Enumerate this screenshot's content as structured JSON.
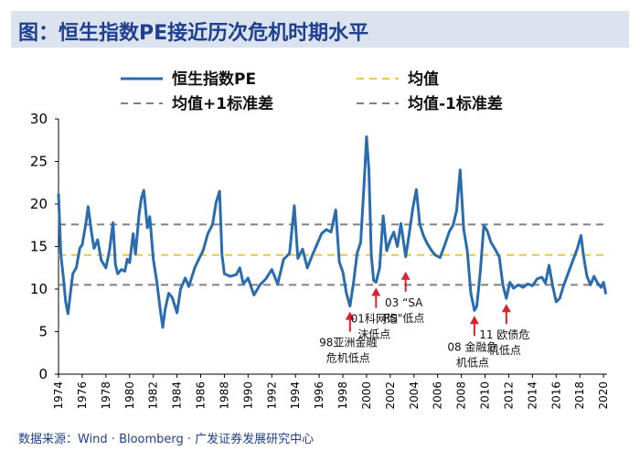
{
  "header": {
    "title": "图：恒生指数PE接近历次危机时期水平"
  },
  "footer": {
    "source": "数据来源：Wind · Bloomberg · 广发证券发展研究中心"
  },
  "colors": {
    "series": "#2a6cb0",
    "mean": "#e8c84a",
    "band": "#808080",
    "arrow": "#e0202a",
    "title": "#1f3f8f"
  },
  "chart_data": {
    "type": "line",
    "title": "恒生指数PE接近历次危机时期水平",
    "xlabel": "",
    "ylabel": "",
    "ylim": [
      0,
      30
    ],
    "xlim": [
      1974,
      2020.3
    ],
    "yticks": [
      0,
      5,
      10,
      15,
      20,
      25,
      30
    ],
    "xticks": [
      "1974",
      "1976",
      "1978",
      "1980",
      "1982",
      "1984",
      "1986",
      "1988",
      "1990",
      "1992",
      "1994",
      "1996",
      "1998",
      "2000",
      "2002",
      "2004",
      "2006",
      "2008",
      "2010",
      "2012",
      "2014",
      "2016",
      "2018",
      "2020"
    ],
    "legend": [
      "恒生指数PE",
      "均值",
      "均值+1标准差",
      "均值-1标准差"
    ],
    "reference_lines": {
      "mean": 14.0,
      "mean_plus_1sd": 17.6,
      "mean_minus_1sd": 10.5
    },
    "series": [
      {
        "name": "恒生指数PE",
        "points": [
          [
            1974.0,
            21.2
          ],
          [
            1974.2,
            14
          ],
          [
            1974.4,
            11.5
          ],
          [
            1974.6,
            8.5
          ],
          [
            1974.8,
            7.1
          ],
          [
            1975.0,
            9.5
          ],
          [
            1975.2,
            11.8
          ],
          [
            1975.5,
            12.5
          ],
          [
            1975.8,
            14.8
          ],
          [
            1976.0,
            15.2
          ],
          [
            1976.3,
            17.6
          ],
          [
            1976.5,
            19.7
          ],
          [
            1976.8,
            16.5
          ],
          [
            1977.0,
            14.8
          ],
          [
            1977.3,
            15.8
          ],
          [
            1977.6,
            13.4
          ],
          [
            1978.0,
            12.5
          ],
          [
            1978.3,
            14.5
          ],
          [
            1978.6,
            17.8
          ],
          [
            1978.8,
            12.9
          ],
          [
            1979.0,
            11.8
          ],
          [
            1979.3,
            12.3
          ],
          [
            1979.6,
            12.1
          ],
          [
            1979.8,
            13.5
          ],
          [
            1980.0,
            13.1
          ],
          [
            1980.3,
            16.5
          ],
          [
            1980.5,
            14.1
          ],
          [
            1980.8,
            18.8
          ],
          [
            1981.0,
            20.7
          ],
          [
            1981.2,
            21.6
          ],
          [
            1981.5,
            17.2
          ],
          [
            1981.7,
            18.5
          ],
          [
            1982.0,
            13.5
          ],
          [
            1982.3,
            10.8
          ],
          [
            1982.6,
            7.5
          ],
          [
            1982.8,
            5.5
          ],
          [
            1983.0,
            7.6
          ],
          [
            1983.3,
            9.5
          ],
          [
            1983.6,
            9.0
          ],
          [
            1984.0,
            7.2
          ],
          [
            1984.3,
            10.0
          ],
          [
            1984.7,
            11.3
          ],
          [
            1985.0,
            10.3
          ],
          [
            1985.5,
            12.5
          ],
          [
            1985.8,
            13.4
          ],
          [
            1986.2,
            14.5
          ],
          [
            1986.6,
            16.5
          ],
          [
            1987.0,
            17.6
          ],
          [
            1987.3,
            20.2
          ],
          [
            1987.6,
            21.5
          ],
          [
            1987.8,
            14.0
          ],
          [
            1988.0,
            11.8
          ],
          [
            1988.5,
            11.5
          ],
          [
            1989.0,
            11.7
          ],
          [
            1989.3,
            12.5
          ],
          [
            1989.6,
            10.6
          ],
          [
            1990.0,
            11.3
          ],
          [
            1990.5,
            9.3
          ],
          [
            1991.0,
            10.5
          ],
          [
            1991.5,
            11.2
          ],
          [
            1992.0,
            12.3
          ],
          [
            1992.5,
            10.6
          ],
          [
            1993.0,
            13.5
          ],
          [
            1993.5,
            14.2
          ],
          [
            1993.9,
            19.8
          ],
          [
            1994.2,
            13.6
          ],
          [
            1994.6,
            14.7
          ],
          [
            1995.0,
            12.5
          ],
          [
            1995.4,
            13.9
          ],
          [
            1995.8,
            15.2
          ],
          [
            1996.2,
            16.5
          ],
          [
            1996.6,
            17.0
          ],
          [
            1997.0,
            16.7
          ],
          [
            1997.4,
            19.3
          ],
          [
            1997.7,
            13.2
          ],
          [
            1998.0,
            12.0
          ],
          [
            1998.3,
            9.5
          ],
          [
            1998.6,
            8.0
          ],
          [
            1998.9,
            10.8
          ],
          [
            1999.2,
            14.2
          ],
          [
            1999.5,
            15.5
          ],
          [
            1999.8,
            22.5
          ],
          [
            2000.0,
            27.9
          ],
          [
            2000.2,
            24.0
          ],
          [
            2000.4,
            14.0
          ],
          [
            2000.6,
            11.0
          ],
          [
            2000.8,
            10.8
          ],
          [
            2001.1,
            12.5
          ],
          [
            2001.4,
            18.6
          ],
          [
            2001.7,
            14.5
          ],
          [
            2002.0,
            15.8
          ],
          [
            2002.3,
            16.7
          ],
          [
            2002.6,
            15.0
          ],
          [
            2002.9,
            17.7
          ],
          [
            2003.3,
            13.8
          ],
          [
            2003.6,
            16.5
          ],
          [
            2003.9,
            19.5
          ],
          [
            2004.2,
            21.7
          ],
          [
            2004.5,
            17.6
          ],
          [
            2004.8,
            16.3
          ],
          [
            2005.1,
            15.4
          ],
          [
            2005.5,
            14.5
          ],
          [
            2005.8,
            14.0
          ],
          [
            2006.2,
            13.7
          ],
          [
            2006.6,
            15.2
          ],
          [
            2007.0,
            16.8
          ],
          [
            2007.3,
            17.5
          ],
          [
            2007.6,
            19.2
          ],
          [
            2007.9,
            24.0
          ],
          [
            2008.2,
            17.0
          ],
          [
            2008.5,
            14.5
          ],
          [
            2008.8,
            9.5
          ],
          [
            2009.1,
            7.5
          ],
          [
            2009.3,
            8.0
          ],
          [
            2009.6,
            12.0
          ],
          [
            2009.9,
            17.5
          ],
          [
            2010.2,
            16.8
          ],
          [
            2010.5,
            15.5
          ],
          [
            2010.8,
            14.8
          ],
          [
            2011.2,
            13.8
          ],
          [
            2011.5,
            10.5
          ],
          [
            2011.8,
            8.9
          ],
          [
            2012.1,
            10.8
          ],
          [
            2012.4,
            10.1
          ],
          [
            2012.8,
            10.5
          ],
          [
            2013.2,
            10.2
          ],
          [
            2013.6,
            10.6
          ],
          [
            2014.0,
            10.4
          ],
          [
            2014.4,
            11.2
          ],
          [
            2014.8,
            11.4
          ],
          [
            2015.1,
            10.7
          ],
          [
            2015.4,
            12.8
          ],
          [
            2015.7,
            10.4
          ],
          [
            2016.0,
            8.5
          ],
          [
            2016.3,
            8.9
          ],
          [
            2016.6,
            10.3
          ],
          [
            2017.0,
            11.8
          ],
          [
            2017.4,
            13.3
          ],
          [
            2017.8,
            14.8
          ],
          [
            2018.1,
            16.3
          ],
          [
            2018.3,
            14.0
          ],
          [
            2018.6,
            11.5
          ],
          [
            2018.9,
            10.5
          ],
          [
            2019.2,
            11.5
          ],
          [
            2019.5,
            10.7
          ],
          [
            2019.8,
            10.2
          ],
          [
            2020.0,
            10.8
          ],
          [
            2020.2,
            9.4
          ]
        ]
      }
    ],
    "annotations": [
      {
        "x": 1998.6,
        "y": 8.0,
        "lines": [
          "98亚洲金融",
          "危机低点"
        ]
      },
      {
        "x": 2000.8,
        "y": 10.8,
        "lines": [
          "01科网泡",
          "沫低点"
        ]
      },
      {
        "x": 2003.3,
        "y": 12.7,
        "lines": [
          "03 “SA",
          "RS\"低点"
        ]
      },
      {
        "x": 2009.1,
        "y": 7.5,
        "lines": [
          "08 金融危",
          "机低点"
        ]
      },
      {
        "x": 2011.8,
        "y": 8.9,
        "lines": [
          "11 欧债危",
          "机低点"
        ]
      }
    ]
  }
}
